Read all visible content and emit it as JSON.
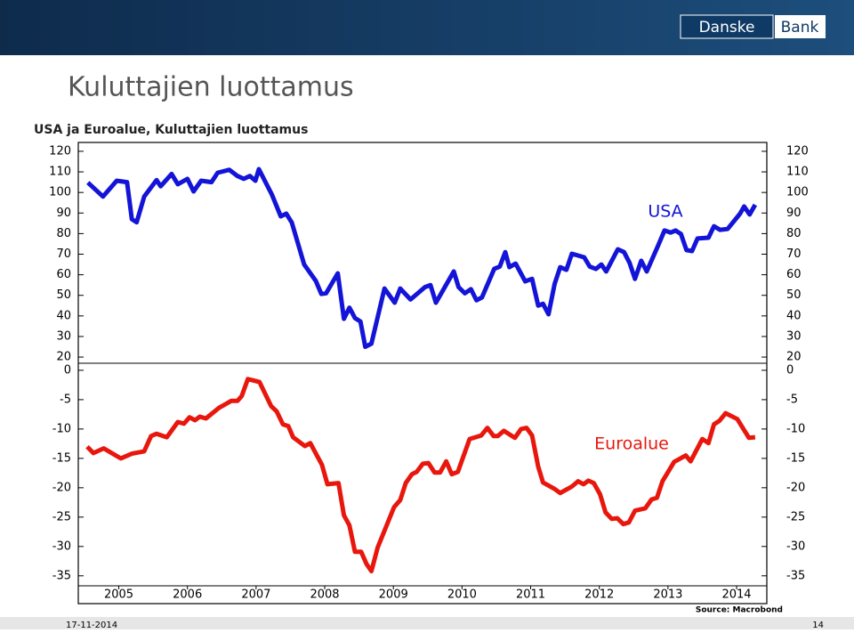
{
  "header": {
    "title": "Kuluttajien luottamus",
    "logo": [
      "Danske",
      "Bank"
    ]
  },
  "footer": {
    "date": "17-11-2014",
    "page": "14",
    "source": "Source: Macrobond"
  },
  "chart_data": [
    {
      "type": "line",
      "title": "USA ja Euroalue, Kuluttajien luottamus",
      "xlim": [
        2004.91,
        2014.94
      ],
      "ylim": [
        17,
        124.3
      ],
      "yticks": [
        20,
        30,
        40,
        50,
        60,
        70,
        80,
        90,
        100,
        110,
        120
      ],
      "x": [
        2005.05,
        2005.27,
        2005.47,
        2005.62,
        2005.69,
        2005.76,
        2005.87,
        2006.05,
        2006.11,
        2006.27,
        2006.36,
        2006.5,
        2006.59,
        2006.7,
        2006.85,
        2006.94,
        2007.11,
        2007.23,
        2007.32,
        2007.41,
        2007.49,
        2007.54,
        2007.73,
        2007.86,
        2007.94,
        2008.02,
        2008.2,
        2008.37,
        2008.45,
        2008.52,
        2008.69,
        2008.78,
        2008.86,
        2008.94,
        2009.02,
        2009.09,
        2009.18,
        2009.37,
        2009.52,
        2009.6,
        2009.75,
        2009.96,
        2010.04,
        2010.12,
        2010.38,
        2010.45,
        2010.54,
        2010.63,
        2010.71,
        2010.79,
        2010.97,
        2011.05,
        2011.13,
        2011.19,
        2011.28,
        2011.42,
        2011.52,
        2011.61,
        2011.68,
        2011.76,
        2011.85,
        2011.93,
        2012.02,
        2012.1,
        2012.28,
        2012.36,
        2012.45,
        2012.53,
        2012.6,
        2012.77,
        2012.86,
        2012.94,
        2013.02,
        2013.11,
        2013.19,
        2013.36,
        2013.45,
        2013.54,
        2013.61,
        2013.69,
        2013.77,
        2013.85,
        2013.93,
        2014.09,
        2014.17,
        2014.26,
        2014.37,
        2014.55,
        2014.61,
        2014.69,
        2014.77
      ],
      "series": [
        {
          "name": "USA",
          "color": "#1414d8",
          "values": [
            104.8,
            98,
            105.7,
            105,
            87,
            85.5,
            98,
            106,
            103,
            109,
            104,
            106.6,
            100.5,
            105.7,
            105,
            109.6,
            111,
            108,
            106.6,
            108,
            105.7,
            111.3,
            99,
            88.4,
            89.7,
            85.4,
            65,
            57,
            50.7,
            51,
            60.7,
            38.6,
            44,
            39,
            37.3,
            25,
            26.5,
            53.3,
            46.4,
            53.3,
            48,
            54,
            55,
            46.4,
            61.6,
            54,
            51,
            53,
            47.6,
            49,
            62.9,
            64,
            71,
            63.7,
            65.4,
            56.8,
            58,
            45,
            45.9,
            40.8,
            55.6,
            63.7,
            62.4,
            70.2,
            68.5,
            64,
            62.8,
            65,
            61.6,
            72.4,
            71,
            65.8,
            58,
            66.8,
            61.6,
            74.5,
            81.5,
            80.5,
            81.5,
            79.8,
            72,
            71.5,
            77.6,
            78,
            83.6,
            81.8,
            82.3,
            89.7,
            93.2,
            89.3,
            94
          ]
        }
      ]
    },
    {
      "type": "line",
      "xlim": [
        2004.91,
        2014.94
      ],
      "xticks": [
        {
          "value": 2005.5,
          "label": "2005"
        },
        {
          "value": 2006.5,
          "label": "2006"
        },
        {
          "value": 2007.5,
          "label": "2007"
        },
        {
          "value": 2008.5,
          "label": "2008"
        },
        {
          "value": 2009.5,
          "label": "2009"
        },
        {
          "value": 2010.5,
          "label": "2010"
        },
        {
          "value": 2011.5,
          "label": "2011"
        },
        {
          "value": 2012.5,
          "label": "2012"
        },
        {
          "value": 2013.5,
          "label": "2013"
        },
        {
          "value": 2014.5,
          "label": "2014"
        }
      ],
      "ylim": [
        -36.7,
        1.2
      ],
      "yticks": [
        0,
        -5,
        -10,
        -15,
        -20,
        -25,
        -30,
        -35
      ],
      "x": [
        2005.04,
        2005.13,
        2005.28,
        2005.53,
        2005.69,
        2005.87,
        2005.97,
        2006.05,
        2006.2,
        2006.36,
        2006.45,
        2006.53,
        2006.61,
        2006.68,
        2006.77,
        2006.96,
        2007.14,
        2007.23,
        2007.29,
        2007.38,
        2007.55,
        2007.72,
        2007.8,
        2007.89,
        2007.97,
        2008.04,
        2008.21,
        2008.29,
        2008.46,
        2008.54,
        2008.7,
        2008.78,
        2008.86,
        2008.94,
        2009.03,
        2009.11,
        2009.18,
        2009.27,
        2009.43,
        2009.51,
        2009.6,
        2009.68,
        2009.77,
        2009.84,
        2009.93,
        2010.01,
        2010.1,
        2010.18,
        2010.27,
        2010.35,
        2010.44,
        2010.61,
        2010.78,
        2010.87,
        2010.96,
        2011.02,
        2011.11,
        2011.27,
        2011.36,
        2011.44,
        2011.52,
        2011.61,
        2011.68,
        2011.85,
        2011.93,
        2012.1,
        2012.19,
        2012.27,
        2012.34,
        2012.42,
        2012.51,
        2012.59,
        2012.68,
        2012.76,
        2012.85,
        2012.93,
        2013.02,
        2013.17,
        2013.26,
        2013.34,
        2013.42,
        2013.59,
        2013.76,
        2013.83,
        2014,
        2014.09,
        2014.17,
        2014.25,
        2014.34,
        2014.51,
        2014.68,
        2014.77
      ],
      "series": [
        {
          "name": "Euroalue",
          "color": "#e8170d",
          "values": [
            -13,
            -14.1,
            -13.3,
            -15,
            -14.2,
            -13.8,
            -11.2,
            -10.8,
            -11.4,
            -8.8,
            -9.1,
            -8,
            -8.5,
            -7.9,
            -8.2,
            -6.4,
            -5.2,
            -5.2,
            -4.4,
            -1.5,
            -2,
            -6.1,
            -7,
            -9.2,
            -9.5,
            -11.4,
            -12.9,
            -12.4,
            -16.1,
            -19.4,
            -19.2,
            -24.7,
            -26.4,
            -30.9,
            -30.9,
            -33,
            -34.2,
            -30.2,
            -25.6,
            -23.3,
            -22.1,
            -19.2,
            -17.7,
            -17.3,
            -15.9,
            -15.8,
            -17.4,
            -17.4,
            -15.5,
            -17.7,
            -17.3,
            -11.7,
            -11.1,
            -9.8,
            -11.2,
            -11.2,
            -10.3,
            -11.5,
            -10,
            -9.8,
            -11.1,
            -16.4,
            -19.1,
            -20.2,
            -20.9,
            -19.8,
            -18.9,
            -19.4,
            -18.8,
            -19.2,
            -21.1,
            -24.2,
            -25.3,
            -25.2,
            -26.2,
            -25.9,
            -23.9,
            -23.5,
            -22,
            -21.7,
            -18.9,
            -15.6,
            -14.5,
            -15.5,
            -11.7,
            -12.4,
            -9.2,
            -8.6,
            -7.3,
            -8.3,
            -11.5,
            -11.4
          ]
        }
      ]
    }
  ]
}
